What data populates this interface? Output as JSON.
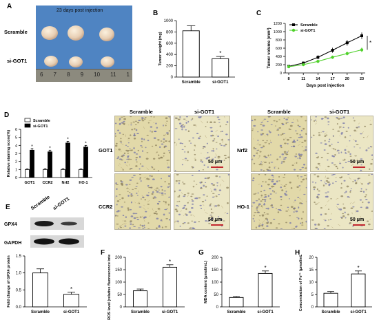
{
  "panels": {
    "A": {
      "letter": "A",
      "title": "23 days post injection",
      "rows": [
        "Scramble",
        "si-GOT1"
      ],
      "ruler": [
        "6",
        "7",
        "8",
        "9",
        "10",
        "11",
        "1"
      ]
    },
    "D": {
      "letter": "D",
      "micro_headers": [
        "Scramble",
        "si-GOT1",
        "Scramble",
        "si-GOT1"
      ],
      "micro_rows_left": [
        "GOT1",
        "CCR2"
      ],
      "micro_rows_right": [
        "Nrf2",
        "HO-1"
      ],
      "scale_bar": "50 μm"
    },
    "E": {
      "letter": "E",
      "lanes": [
        "Scramble",
        "si-GOT1"
      ],
      "blots": [
        "GPX4",
        "GAPDH"
      ]
    }
  },
  "colors": {
    "green_series": "#4fd12a",
    "micro_bg": "#e8e2b8",
    "nuclei": "#6f6fa8"
  },
  "chart_data": [
    {
      "id": "B",
      "letter": "B",
      "type": "bar",
      "categories": [
        "Scramble",
        "si-GOT1"
      ],
      "values": [
        820,
        325
      ],
      "errors": [
        90,
        40
      ],
      "ylabel": "Tumor weight (mg)",
      "yticks": [
        0,
        200,
        400,
        600,
        800,
        1000
      ],
      "ylim": [
        0,
        1000
      ],
      "annotation": "*"
    },
    {
      "id": "C",
      "letter": "C",
      "type": "line",
      "x": [
        8,
        11,
        14,
        17,
        20,
        23
      ],
      "series": [
        {
          "name": "Scramble",
          "values": [
            160,
            240,
            380,
            550,
            730,
            900
          ],
          "errors": [
            25,
            35,
            50,
            60,
            70,
            80
          ],
          "marker": "square",
          "color": "#000000"
        },
        {
          "name": "si-GOT1",
          "values": [
            150,
            200,
            280,
            380,
            470,
            560
          ],
          "errors": [
            20,
            25,
            35,
            40,
            45,
            55
          ],
          "marker": "circle",
          "color": "#4fd12a"
        }
      ],
      "xlabel": "Days post injection",
      "ylabel": "Tumor volume (mm³)",
      "yticks": [
        0,
        200,
        400,
        600,
        800,
        1000,
        1200
      ],
      "ylim": [
        0,
        1200
      ],
      "annotation": "*",
      "legend": "top-left"
    },
    {
      "id": "D",
      "type": "bar",
      "categories": [
        "GOT1",
        "CCR2",
        "Nrf2",
        "HO-1"
      ],
      "series": [
        {
          "name": "Scramble",
          "values": [
            1.0,
            1.0,
            1.0,
            1.0
          ],
          "errors": [
            0.08,
            0.1,
            0.1,
            0.08
          ],
          "color": "#ffffff"
        },
        {
          "name": "si-GOT1",
          "values": [
            3.4,
            3.2,
            4.3,
            3.8
          ],
          "errors": [
            0.2,
            0.2,
            0.2,
            0.2
          ],
          "color": "#000000"
        }
      ],
      "ylabel": "Relative staining score(%)",
      "yticks": [
        0,
        1,
        2,
        3,
        4,
        5,
        6
      ],
      "ylim": [
        0,
        6
      ],
      "annotation": "*",
      "legend": "top-left"
    },
    {
      "id": "E",
      "type": "bar",
      "categories": [
        "Scramble",
        "si-GOT1"
      ],
      "values": [
        1.0,
        0.37
      ],
      "errors": [
        0.12,
        0.06
      ],
      "ylabel": "Fold change of GPX4 protein",
      "yticks": [
        0.0,
        0.5,
        1.0,
        1.5
      ],
      "ylim": [
        0,
        1.5
      ],
      "annotation": "*"
    },
    {
      "id": "F",
      "letter": "F",
      "type": "bar",
      "categories": [
        "Scramble",
        "si-GOT1"
      ],
      "values": [
        65,
        160
      ],
      "errors": [
        7,
        10
      ],
      "ylabel": "ROS level (relative fluorescence intensity)",
      "yticks": [
        0,
        50,
        100,
        150,
        200
      ],
      "ylim": [
        0,
        200
      ],
      "annotation": "*"
    },
    {
      "id": "G",
      "letter": "G",
      "type": "bar",
      "categories": [
        "Scramble",
        "si-GOT1"
      ],
      "values": [
        38,
        135
      ],
      "errors": [
        4,
        10
      ],
      "ylabel": "MDA content (μmol/mL)",
      "yticks": [
        0,
        50,
        100,
        150,
        200
      ],
      "ylim": [
        0,
        200
      ],
      "annotation": "*"
    },
    {
      "id": "H",
      "letter": "H",
      "type": "bar",
      "categories": [
        "Scramble",
        "si-GOT1"
      ],
      "values": [
        5.5,
        13.3
      ],
      "errors": [
        0.7,
        1.2
      ],
      "ylabel": "Concentration of Fe²⁺ (μmol/mL)",
      "yticks": [
        0,
        5,
        10,
        15,
        20
      ],
      "ylim": [
        0,
        20
      ],
      "annotation": "*"
    }
  ]
}
